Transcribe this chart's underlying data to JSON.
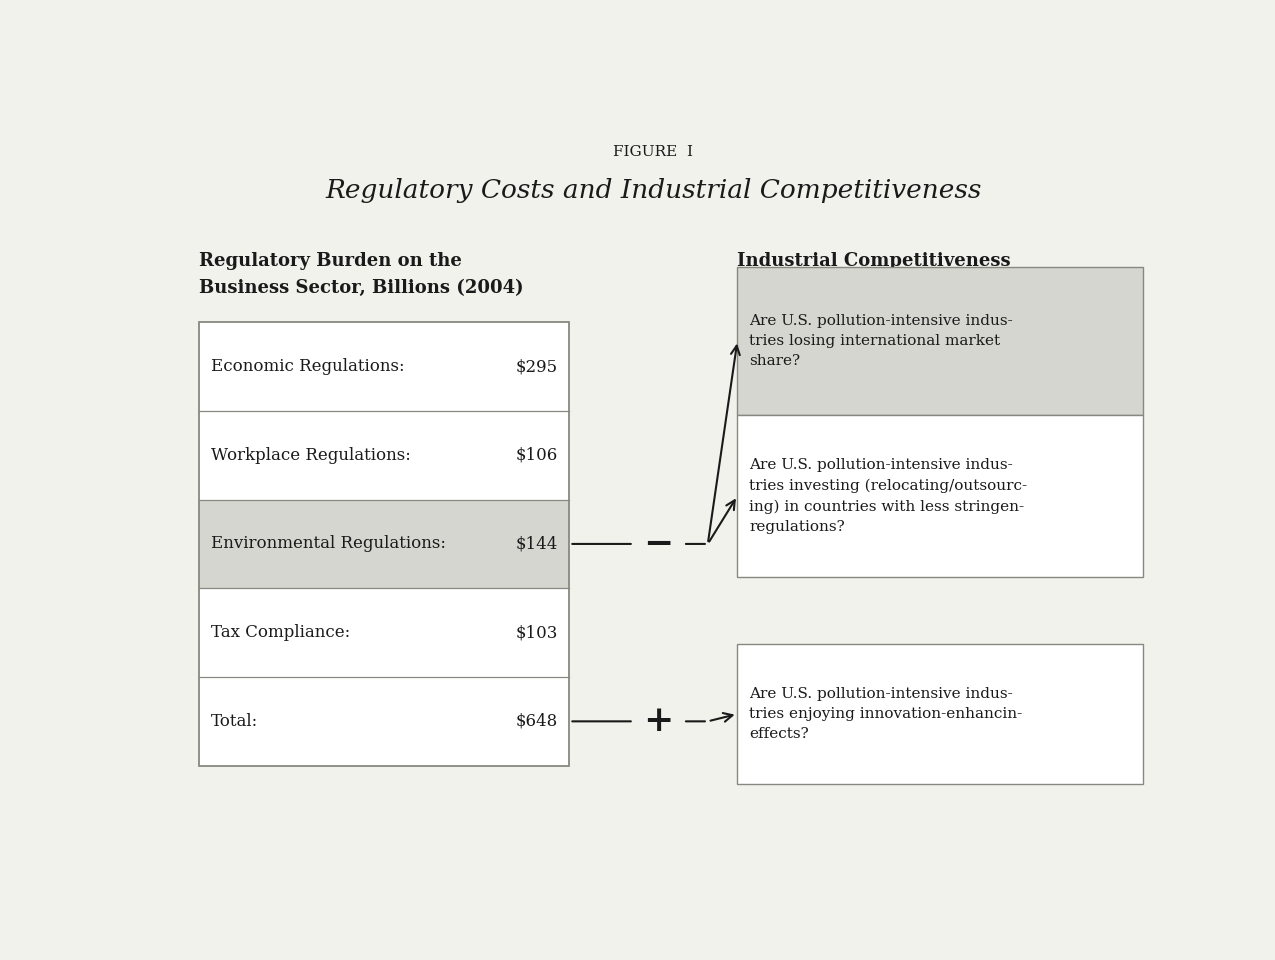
{
  "fig_label": "FIGURE  I",
  "title": "Regulatory Costs and Industrial Competitiveness",
  "left_header_line1": "Regulatory Burden on the",
  "left_header_line2": "Business Sector, Billions (2004)",
  "right_header": "Industrial Competitiveness",
  "table_rows": [
    {
      "label": "Economic Regulations:",
      "value": "$295",
      "shaded": false
    },
    {
      "label": "Workplace Regulations:",
      "value": "$106",
      "shaded": false
    },
    {
      "label": "Environmental Regulations:",
      "value": "$144",
      "shaded": true
    },
    {
      "label": "Tax Compliance:",
      "value": "$103",
      "shaded": false
    },
    {
      "label": "Total:",
      "value": "$648",
      "shaded": false
    }
  ],
  "minus_label": "−",
  "plus_label": "+",
  "right_boxes": [
    {
      "text": "Are U.S. pollution-intensive indus-\ntries losing international market\nshare?",
      "shaded": true
    },
    {
      "text": "Are U.S. pollution-intensive indus-\ntries investing (relocating/outsourc-\ning) in countries with less stringen-\nregulations?",
      "shaded": false
    },
    {
      "text": "Are U.S. pollution-intensive indus-\ntries enjoying innovation-enhancin-\neffects?",
      "shaded": false
    }
  ],
  "bg_color": "#f2f2ed",
  "box_face_shaded": "#d6d6d0",
  "box_face_unshaded": "#ffffff",
  "box_edge_color": "#888880",
  "text_color": "#1a1a1a",
  "arrow_color": "#1a1a1a",
  "font_size_title_label": 11,
  "font_size_title": 19,
  "font_size_header": 13,
  "font_size_table": 12,
  "font_size_symbol": 26,
  "font_size_box": 11
}
